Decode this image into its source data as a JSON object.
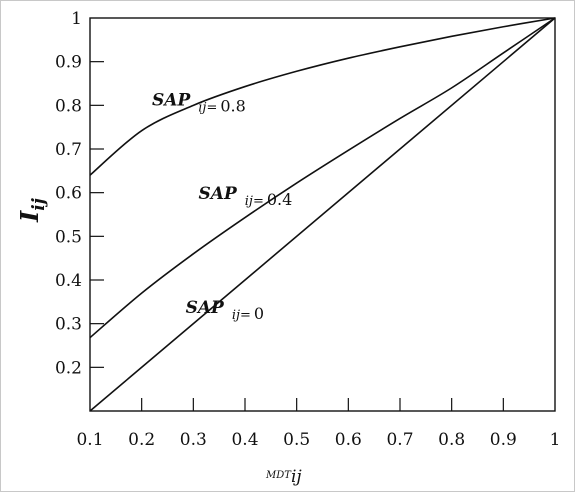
{
  "chart_data": {
    "type": "line",
    "xlim": [
      0.1,
      1
    ],
    "ylim": [
      0.1,
      1
    ],
    "x_ticks": [
      0.1,
      0.2,
      0.3,
      0.4,
      0.5,
      0.6,
      0.7,
      0.8,
      0.9,
      1
    ],
    "x_tick_labels": [
      "0.1",
      "0.2",
      "0.3",
      "0.4",
      "0.5",
      "0.6",
      "0.7",
      "0.8",
      "0.9",
      "1"
    ],
    "y_ticks": [
      0.2,
      0.3,
      0.4,
      0.5,
      0.6,
      0.7,
      0.8,
      0.9,
      1
    ],
    "y_tick_labels": [
      "0.2",
      "0.3",
      "0.4",
      "0.5",
      "0.6",
      "0.7",
      "0.8",
      "0.9",
      "1"
    ],
    "xlabel": {
      "main": "MDT",
      "sub": "ij"
    },
    "ylabel": {
      "main": "I",
      "sub": "ij"
    },
    "grid": false,
    "series": [
      {
        "label_main": "SAP",
        "label_sub": "ij=",
        "label_value": "0.8",
        "x": [
          0.1,
          0.2,
          0.3,
          0.4,
          0.5,
          0.6,
          0.7,
          0.8,
          0.9,
          1.0
        ],
        "y": [
          0.64,
          0.742,
          0.8,
          0.843,
          0.878,
          0.908,
          0.934,
          0.958,
          0.98,
          1.0
        ]
      },
      {
        "label_main": "SAP",
        "label_sub": "ij=",
        "label_value": "0.4",
        "x": [
          0.1,
          0.2,
          0.3,
          0.4,
          0.5,
          0.6,
          0.7,
          0.8,
          0.9,
          1.0
        ],
        "y": [
          0.268,
          0.37,
          0.46,
          0.543,
          0.622,
          0.697,
          0.77,
          0.84,
          0.92,
          1.0
        ]
      },
      {
        "label_main": "SAP",
        "label_sub": "ij=",
        "label_value": "0",
        "x": [
          0.1,
          1.0
        ],
        "y": [
          0.1,
          1.0
        ]
      }
    ]
  }
}
